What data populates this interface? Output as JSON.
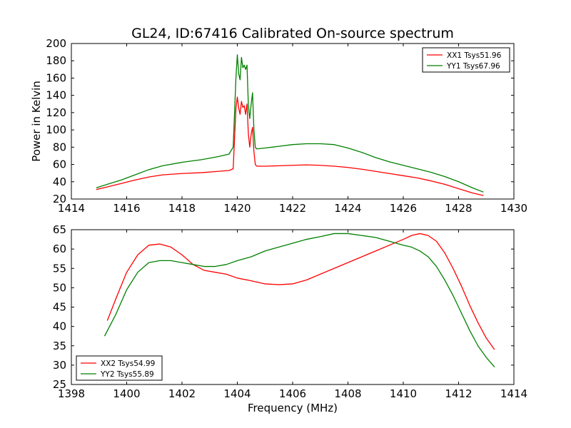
{
  "title": "GL24, ID:67416 Calibrated On-source spectrum",
  "chart_data": [
    {
      "type": "line",
      "ylabel": "Power in Kelvin",
      "xlabel": "",
      "xlim": [
        1414,
        1430
      ],
      "ylim": [
        20,
        200
      ],
      "xticks": [
        1414,
        1416,
        1418,
        1420,
        1422,
        1424,
        1426,
        1428,
        1430
      ],
      "yticks": [
        20,
        40,
        60,
        80,
        100,
        120,
        140,
        160,
        180,
        200
      ],
      "legend_position": "top-right",
      "series": [
        {
          "name": "XX1 Tsys51.96",
          "color": "#ff0000",
          "x": [
            1414.9,
            1415.3,
            1415.8,
            1416.3,
            1416.8,
            1417.3,
            1418.0,
            1418.7,
            1419.3,
            1419.7,
            1419.85,
            1419.95,
            1420.0,
            1420.05,
            1420.1,
            1420.15,
            1420.2,
            1420.25,
            1420.3,
            1420.35,
            1420.4,
            1420.45,
            1420.5,
            1420.55,
            1420.6,
            1420.65,
            1420.7,
            1421.0,
            1421.5,
            1422.0,
            1422.5,
            1423.0,
            1423.5,
            1424.0,
            1424.5,
            1425.0,
            1425.5,
            1426.0,
            1426.5,
            1427.0,
            1427.5,
            1428.0,
            1428.5,
            1428.9
          ],
          "y": [
            31,
            34,
            38,
            42,
            45.5,
            48,
            49.5,
            50.5,
            52,
            53,
            55,
            125,
            138,
            125,
            118,
            133,
            126,
            128,
            118,
            130,
            95,
            80,
            95,
            103,
            75,
            60,
            58,
            58,
            58.5,
            59,
            59.5,
            59,
            58,
            56.5,
            54.5,
            52,
            49.5,
            47,
            44.5,
            41,
            37,
            32,
            27,
            24
          ]
        },
        {
          "name": "YY1 Tsys67.96",
          "color": "#008000",
          "x": [
            1414.9,
            1415.3,
            1415.8,
            1416.3,
            1416.8,
            1417.3,
            1418.0,
            1418.7,
            1419.3,
            1419.7,
            1419.85,
            1419.95,
            1420.0,
            1420.05,
            1420.1,
            1420.15,
            1420.2,
            1420.25,
            1420.3,
            1420.35,
            1420.4,
            1420.45,
            1420.5,
            1420.55,
            1420.6,
            1420.65,
            1420.7,
            1421.0,
            1421.5,
            1422.0,
            1422.5,
            1423.0,
            1423.5,
            1424.0,
            1424.5,
            1425.0,
            1425.5,
            1426.0,
            1426.5,
            1427.0,
            1427.5,
            1428.0,
            1428.5,
            1428.9
          ],
          "y": [
            33,
            37,
            42,
            48,
            54,
            58.5,
            62.5,
            65.5,
            69,
            72,
            80,
            160,
            187,
            165,
            158,
            184,
            172,
            175,
            170,
            175,
            128,
            113,
            130,
            143,
            100,
            80,
            78,
            79,
            81,
            83,
            84,
            84,
            83,
            79,
            74,
            68,
            63,
            59,
            55,
            51,
            46,
            40,
            33,
            28
          ]
        }
      ]
    },
    {
      "type": "line",
      "ylabel": "",
      "xlabel": "Frequency (MHz)",
      "xlim": [
        1398,
        1414
      ],
      "ylim": [
        25,
        65
      ],
      "xticks": [
        1398,
        1400,
        1402,
        1404,
        1406,
        1408,
        1410,
        1412,
        1414
      ],
      "yticks": [
        25,
        30,
        35,
        40,
        45,
        50,
        55,
        60,
        65
      ],
      "legend_position": "bottom-left",
      "series": [
        {
          "name": "XX2 Tsys54.99",
          "color": "#ff0000",
          "x": [
            1399.3,
            1399.6,
            1400.0,
            1400.4,
            1400.8,
            1401.2,
            1401.6,
            1402.0,
            1402.4,
            1402.8,
            1403.2,
            1403.6,
            1404.0,
            1404.5,
            1405.0,
            1405.5,
            1406.0,
            1406.5,
            1407.0,
            1407.5,
            1408.0,
            1408.5,
            1409.0,
            1409.5,
            1410.0,
            1410.3,
            1410.6,
            1410.9,
            1411.2,
            1411.5,
            1411.8,
            1412.1,
            1412.4,
            1412.7,
            1413.0,
            1413.3
          ],
          "y": [
            41.5,
            47,
            54,
            58.5,
            61,
            61.3,
            60.5,
            58.5,
            56,
            54.5,
            54,
            53.5,
            52.5,
            51.8,
            51,
            50.8,
            51,
            52,
            53.5,
            55,
            56.5,
            58,
            59.5,
            61,
            62.5,
            63.5,
            64,
            63.5,
            62,
            59,
            55,
            50.5,
            45.5,
            41,
            37,
            34
          ]
        },
        {
          "name": "YY2 Tsys55.89",
          "color": "#008000",
          "x": [
            1399.2,
            1399.6,
            1400.0,
            1400.4,
            1400.8,
            1401.2,
            1401.6,
            1402.0,
            1402.4,
            1402.8,
            1403.2,
            1403.6,
            1404.0,
            1404.5,
            1405.0,
            1405.5,
            1406.0,
            1406.5,
            1407.0,
            1407.5,
            1408.0,
            1408.5,
            1409.0,
            1409.5,
            1410.0,
            1410.3,
            1410.6,
            1410.9,
            1411.2,
            1411.5,
            1411.8,
            1412.1,
            1412.4,
            1412.7,
            1413.0,
            1413.3
          ],
          "y": [
            37.5,
            43,
            49.5,
            54,
            56.5,
            57,
            57,
            56.5,
            56,
            55.5,
            55.5,
            56,
            57,
            58,
            59.5,
            60.5,
            61.5,
            62.5,
            63.2,
            64,
            64,
            63.5,
            63,
            62,
            61,
            60.5,
            59.5,
            58,
            55.5,
            52,
            48,
            43.5,
            39,
            35,
            32,
            29.5
          ]
        }
      ]
    }
  ]
}
